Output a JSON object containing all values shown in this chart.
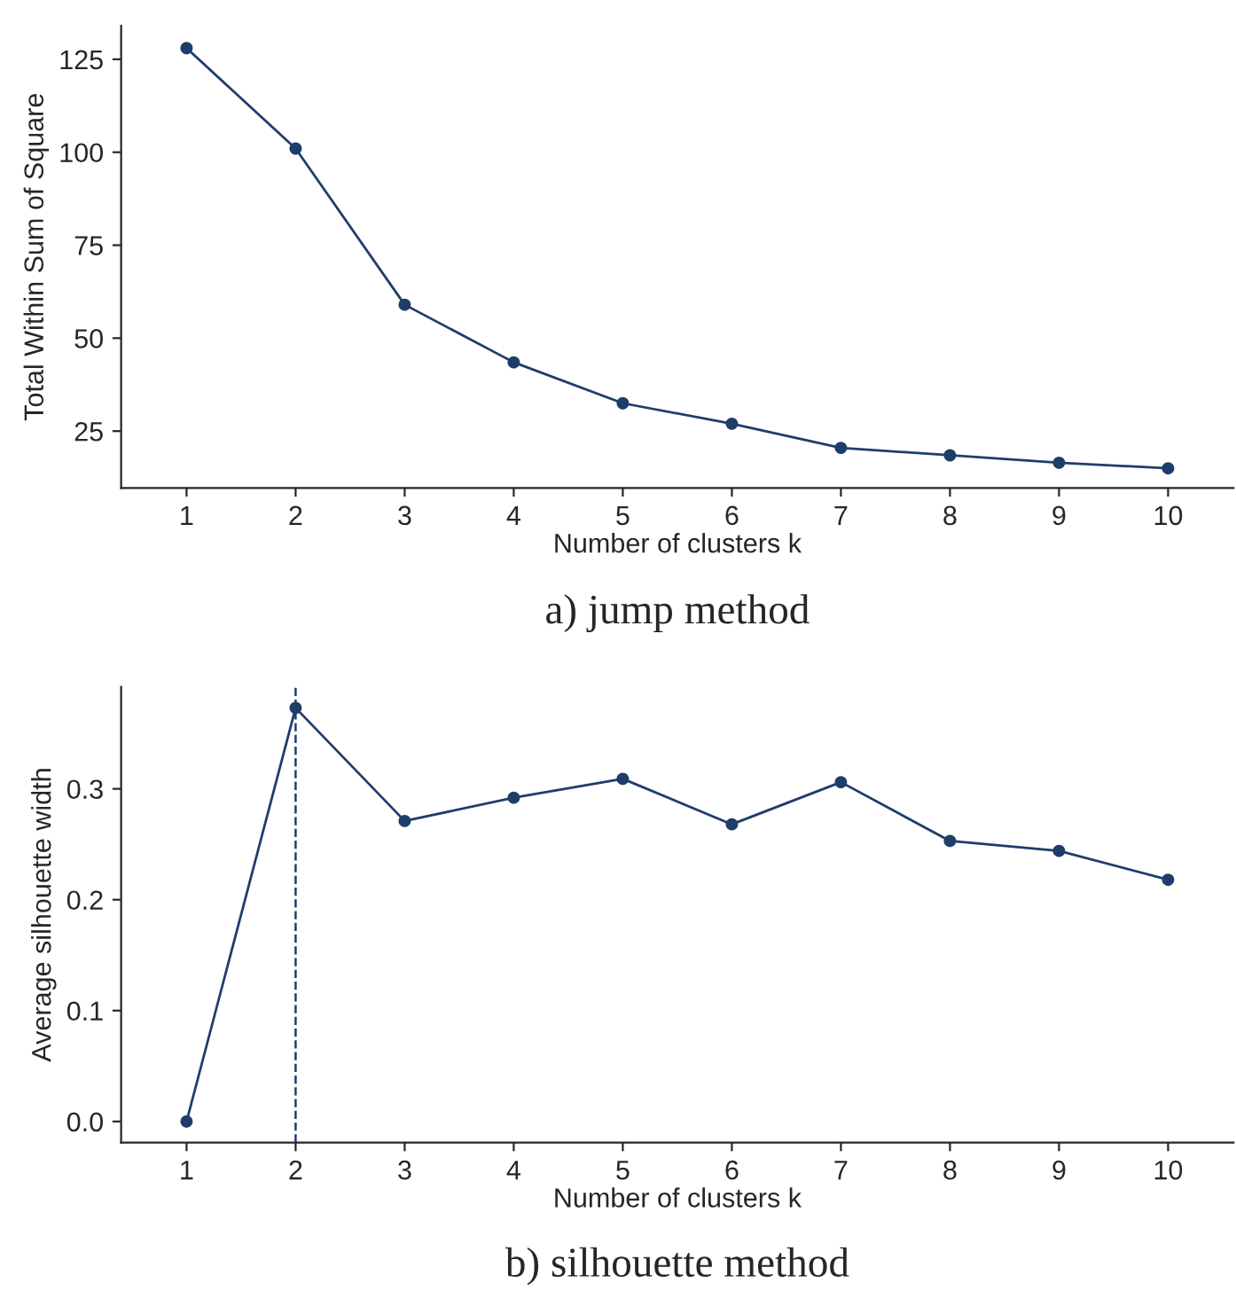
{
  "chart_data": [
    {
      "type": "line",
      "xlabel": "Number of clusters k",
      "ylabel": "Total Within Sum of Square",
      "annotations": [
        "a) jump method"
      ],
      "categories": [
        "1",
        "2",
        "3",
        "4",
        "5",
        "6",
        "7",
        "8",
        "9",
        "10"
      ],
      "series": [
        {
          "color": "#1f3d6b",
          "values": [
            128,
            101,
            59,
            43.5,
            32.5,
            27,
            20.5,
            18.5,
            16.5,
            15
          ]
        }
      ],
      "ylim": [
        9.7,
        134
      ],
      "yticks": [
        25,
        50,
        75,
        100,
        125
      ],
      "marker": "circle",
      "line_style": "solid",
      "grid": false,
      "legend": false
    },
    {
      "type": "line",
      "xlabel": "Number of clusters k",
      "ylabel": "Average silhouette width",
      "annotations": [
        "b) silhouette method"
      ],
      "categories": [
        "1",
        "2",
        "3",
        "4",
        "5",
        "6",
        "7",
        "8",
        "9",
        "10"
      ],
      "series": [
        {
          "color": "#1f3d6b",
          "values": [
            0.0,
            0.373,
            0.271,
            0.292,
            0.309,
            0.268,
            0.306,
            0.253,
            0.244,
            0.218
          ]
        }
      ],
      "ylim": [
        -0.019,
        0.392
      ],
      "yticks": [
        {
          "value": 0,
          "label": "0.0"
        },
        0.1,
        0.2,
        0.3
      ],
      "marker": "circle",
      "line_style": "solid",
      "grid": false,
      "legend": false,
      "ref_lines": [
        {
          "axis": "x",
          "value": "2",
          "line_style": "dashed",
          "color": "#1f3d6b"
        }
      ]
    }
  ]
}
